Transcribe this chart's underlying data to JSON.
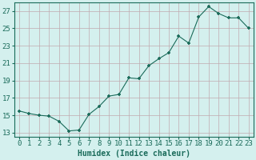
{
  "x": [
    0,
    1,
    2,
    3,
    4,
    5,
    6,
    7,
    8,
    9,
    10,
    11,
    12,
    13,
    14,
    15,
    16,
    17,
    18,
    19,
    20,
    21,
    22,
    23
  ],
  "y": [
    15.5,
    15.2,
    15.0,
    14.9,
    14.3,
    13.2,
    13.3,
    15.1,
    16.0,
    17.2,
    17.4,
    19.3,
    19.2,
    20.7,
    21.5,
    22.2,
    24.1,
    23.3,
    26.3,
    27.5,
    26.7,
    26.2,
    26.2,
    25.0
  ],
  "line_color": "#1a6b5a",
  "marker": "P",
  "marker_size": 2.5,
  "bg_color": "#d4f0ee",
  "grid_color": "#c0aab0",
  "xlabel": "Humidex (Indice chaleur)",
  "ylabel": "",
  "xlim": [
    -0.5,
    23.5
  ],
  "ylim": [
    12.5,
    28.0
  ],
  "yticks": [
    13,
    15,
    17,
    19,
    21,
    23,
    25,
    27
  ],
  "xticks": [
    0,
    1,
    2,
    3,
    4,
    5,
    6,
    7,
    8,
    9,
    10,
    11,
    12,
    13,
    14,
    15,
    16,
    17,
    18,
    19,
    20,
    21,
    22,
    23
  ],
  "tick_color": "#1a6b5a",
  "label_fontsize": 7,
  "tick_fontsize": 6.5
}
